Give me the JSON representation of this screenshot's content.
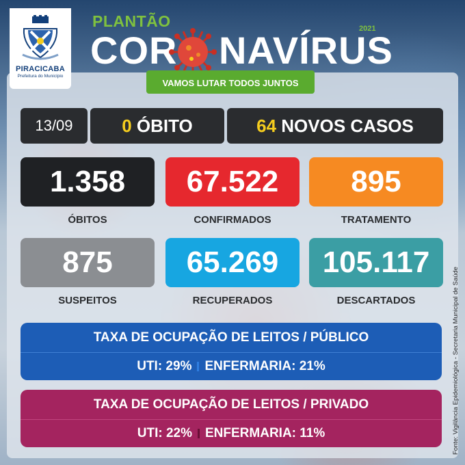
{
  "logo": {
    "city": "PIRACICABA",
    "subtitle": "Prefeitura do Município"
  },
  "header": {
    "overline": "PLANTÃO",
    "title_left": "COR",
    "title_right": "NAVÍRUS",
    "year": "2021",
    "slogan": "VAMOS LUTAR TODOS JUNTOS"
  },
  "daily": {
    "date": "13/09",
    "deaths_value": "0",
    "deaths_label": "ÓBITO",
    "new_cases_value": "64",
    "new_cases_label": "NOVOS CASOS"
  },
  "stats": [
    {
      "value": "1.358",
      "label": "ÓBITOS",
      "color": "#1f2124"
    },
    {
      "value": "67.522",
      "label": "CONFIRMADOS",
      "color": "#e6282e"
    },
    {
      "value": "895",
      "label": "TRATAMENTO",
      "color": "#f68a22"
    },
    {
      "value": "875",
      "label": "SUSPEITOS",
      "color": "#8b8e92"
    },
    {
      "value": "65.269",
      "label": "RECUPERADOS",
      "color": "#17a6e1"
    },
    {
      "value": "105.117",
      "label": "DESCARTADOS",
      "color": "#3b9ea4"
    }
  ],
  "occupancy_public": {
    "title": "TAXA DE OCUPAÇÃO DE LEITOS / PÚBLICO",
    "uti": "UTI: 29%",
    "ward": "ENFERMARIA: 21%",
    "color": "#1d5db6"
  },
  "occupancy_private": {
    "title": "TAXA DE OCUPAÇÃO DE LEITOS / PRIVADO",
    "uti": "UTI: 22%",
    "ward": "ENFERMARIA: 11%",
    "color": "#a4245f"
  },
  "source": "Fonte: Vigilância Epidemiológica - Secretaria Municipal de Saúde",
  "icons": {
    "crest": "coat-of-arms-icon",
    "virus": "coronavirus-icon"
  }
}
